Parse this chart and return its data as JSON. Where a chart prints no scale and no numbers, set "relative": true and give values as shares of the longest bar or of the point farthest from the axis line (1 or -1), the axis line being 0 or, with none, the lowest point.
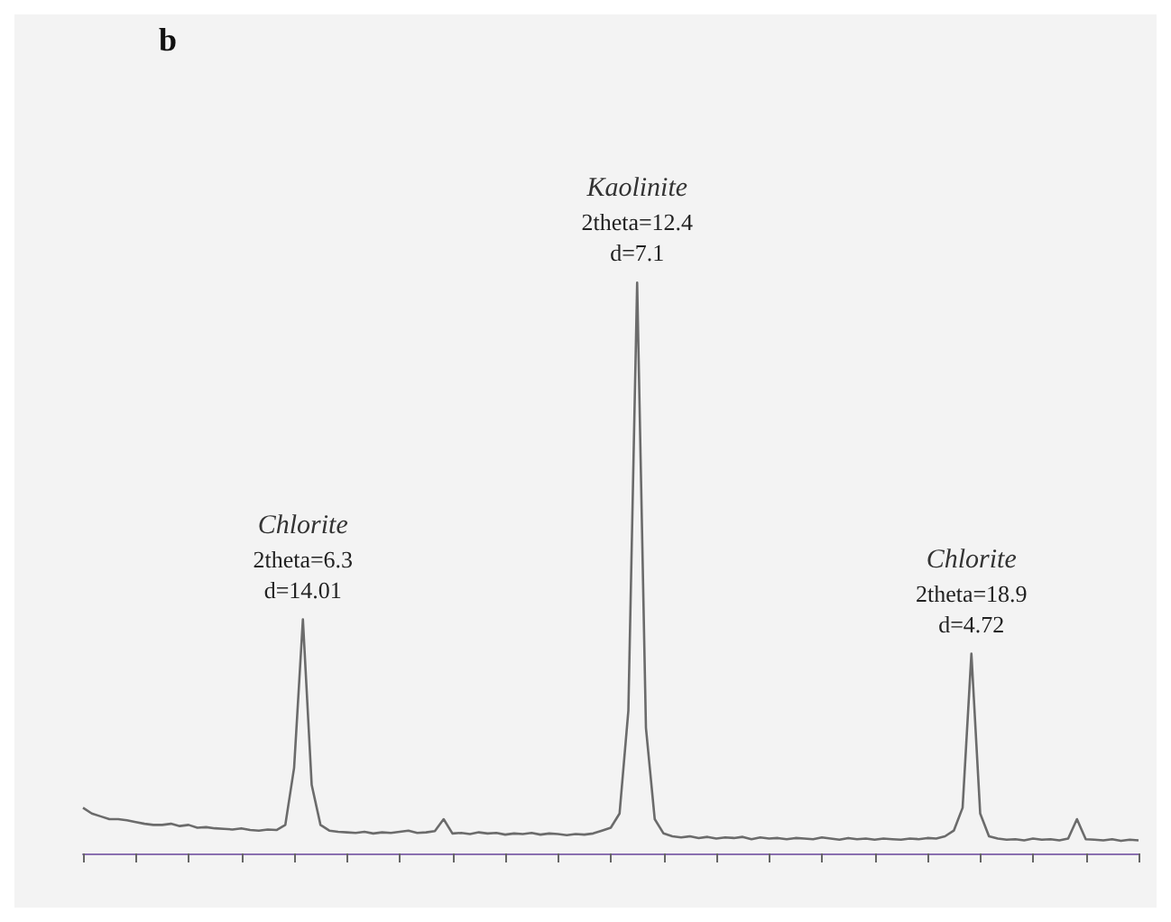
{
  "chart_data": {
    "type": "line",
    "title": "b",
    "relative": true,
    "grid": false,
    "marker": "none",
    "line_style": "solid",
    "categories": [
      null,
      null,
      null,
      null,
      null,
      null,
      null,
      null,
      null,
      null,
      null,
      null,
      null,
      null,
      null,
      null,
      null,
      null,
      null,
      null,
      null,
      null,
      null,
      null,
      null,
      null,
      null,
      null,
      null,
      null,
      null,
      null,
      null,
      null,
      null,
      null,
      null,
      null,
      null,
      null,
      null,
      null,
      null,
      null,
      null,
      null,
      null,
      null,
      null,
      null,
      null,
      null,
      null,
      null,
      null,
      null,
      null,
      null,
      null,
      null,
      null,
      null,
      null,
      null,
      null,
      null,
      null,
      null,
      null,
      null,
      null,
      null,
      null,
      null,
      null,
      null,
      null,
      null,
      null,
      null,
      null,
      null,
      null,
      null,
      null,
      null,
      null,
      null,
      null,
      null,
      null,
      null,
      null,
      null,
      null,
      null,
      null,
      null,
      null,
      null,
      null,
      null,
      null,
      null,
      null,
      null,
      null,
      null,
      null,
      null,
      null,
      null,
      null,
      null,
      null,
      null,
      null,
      null,
      null,
      null,
      null
    ],
    "series": [
      {
        "color": "#6b6b6b",
        "values": [
          0.08,
          0.07,
          0.065,
          0.06,
          0.06,
          0.058,
          0.055,
          0.052,
          0.05,
          0.05,
          0.052,
          0.048,
          0.05,
          0.045,
          0.046,
          0.044,
          0.043,
          0.042,
          0.044,
          0.041,
          0.04,
          0.042,
          0.041,
          0.05,
          0.15,
          0.41,
          0.12,
          0.05,
          0.04,
          0.038,
          0.037,
          0.036,
          0.038,
          0.035,
          0.037,
          0.036,
          0.038,
          0.04,
          0.036,
          0.037,
          0.039,
          0.06,
          0.035,
          0.036,
          0.034,
          0.037,
          0.035,
          0.036,
          0.033,
          0.035,
          0.034,
          0.036,
          0.033,
          0.035,
          0.034,
          0.032,
          0.034,
          0.033,
          0.035,
          0.04,
          0.045,
          0.07,
          0.25,
          1,
          0.22,
          0.06,
          0.035,
          0.03,
          0.028,
          0.03,
          0.027,
          0.029,
          0.026,
          0.028,
          0.027,
          0.029,
          0.025,
          0.028,
          0.026,
          0.027,
          0.025,
          0.027,
          0.026,
          0.025,
          0.028,
          0.026,
          0.024,
          0.027,
          0.025,
          0.026,
          0.024,
          0.026,
          0.025,
          0.024,
          0.026,
          0.025,
          0.027,
          0.026,
          0.03,
          0.04,
          0.08,
          0.35,
          0.07,
          0.03,
          0.026,
          0.024,
          0.025,
          0.023,
          0.026,
          0.024,
          0.025,
          0.023,
          0.026,
          0.06,
          0.025,
          0.024,
          0.023,
          0.025,
          0.022,
          0.024,
          0.023
        ]
      }
    ],
    "annotations": [
      "Chlorite\n2theta=6.3\nd=14.01",
      "Kaolinite\n2theta=12.4\nd=7.1",
      "Chlorite\n2theta=18.9\nd=4.72"
    ]
  }
}
